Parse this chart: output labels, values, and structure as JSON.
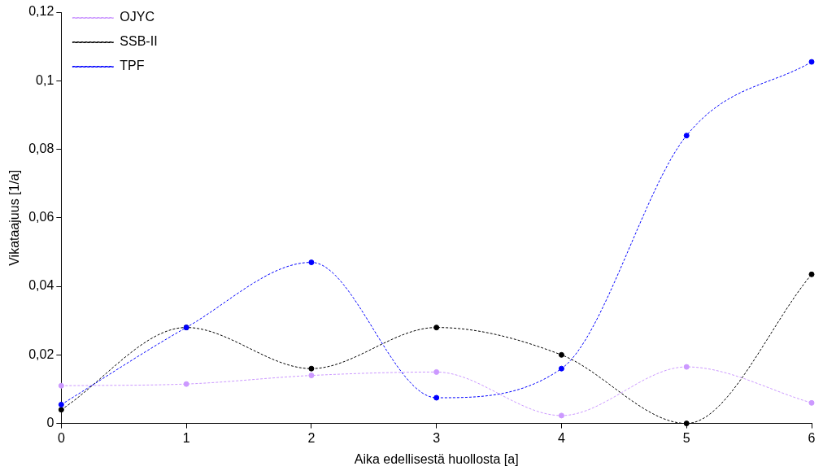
{
  "chart_data": {
    "type": "line",
    "xlabel": "Aika edellisestä huollosta [a]",
    "ylabel": "Vikataajuus [1/a]",
    "x": [
      0,
      1,
      2,
      3,
      4,
      5,
      6
    ],
    "series": [
      {
        "name": "OJYC",
        "color": "#cc99ff",
        "values": [
          0.011,
          0.0115,
          0.014,
          0.015,
          0.0023,
          0.0165,
          0.006
        ]
      },
      {
        "name": "SSB-II",
        "color": "#000000",
        "values": [
          0.004,
          0.028,
          0.016,
          0.028,
          0.02,
          0,
          0.0435
        ]
      },
      {
        "name": "TPF",
        "color": "#0000ff",
        "values": [
          0.0055,
          0.028,
          0.047,
          0.0075,
          0.016,
          0.084,
          0.1055
        ]
      }
    ],
    "xlim": [
      0,
      6
    ],
    "xticks": [
      0,
      1,
      2,
      3,
      4,
      5,
      6
    ],
    "ylim": [
      0,
      0.12
    ],
    "yticks": [
      0,
      {
        "value": 0.02,
        "label": "0,02"
      },
      {
        "value": 0.04,
        "label": "0,04"
      },
      {
        "value": 0.06,
        "label": "0,06"
      },
      {
        "value": 0.08,
        "label": "0,08"
      },
      {
        "value": 0.1,
        "label": "0,1"
      },
      {
        "value": 0.12,
        "label": "0,12"
      }
    ],
    "grid": false,
    "legend": "top left",
    "marker": "circle",
    "line_style": "dashed"
  }
}
